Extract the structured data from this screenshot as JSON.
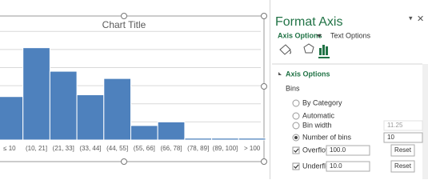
{
  "chart_data": {
    "type": "histogram",
    "title": "Chart Title",
    "categories": [
      "≤ 10",
      "(10, 21]",
      "(21, 33]",
      "(33, 44]",
      "(44, 55]",
      "(55, 66]",
      "(66, 78]",
      "(78, 89]",
      "(89, 100]",
      "> 100"
    ],
    "values": [
      2.4,
      5.1,
      3.8,
      2.5,
      3.4,
      0.8,
      1.0,
      0.1,
      0.1,
      0.1
    ],
    "color": "#4e81bd",
    "ylim": [
      0,
      6.5
    ],
    "yticks": [
      0,
      1,
      2,
      3,
      4,
      5,
      6
    ],
    "grid": true
  },
  "panel": {
    "title": "Format Axis",
    "tabs": [
      "Axis Options",
      "Text Options"
    ],
    "section": "Axis Options",
    "group": "Bins",
    "radios": [
      {
        "label": "By Category"
      },
      {
        "label": "Automatic"
      },
      {
        "label": "Bin width",
        "value": "11.25"
      },
      {
        "label": "Number of bins",
        "value": "10",
        "selected": true
      }
    ],
    "checks": [
      {
        "label": "Overflow bin",
        "value": "100.0",
        "button": "Reset",
        "checked": true
      },
      {
        "label": "Underflow bin",
        "value": "10.0",
        "button": "Reset",
        "checked": true
      }
    ]
  }
}
